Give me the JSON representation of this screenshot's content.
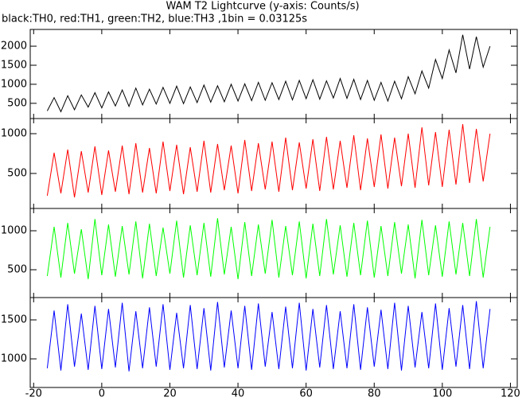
{
  "title": "WAM T2 Lightcurve (y-axis: Counts/s)",
  "subtitle": "black:TH0, red:TH1, green:TH2, blue:TH3 ,1bin = 0.03125s",
  "chart_data": [
    {
      "type": "line",
      "xlim": [
        -21,
        122
      ],
      "ylim": [
        100,
        2440
      ],
      "yticks": [
        500,
        1000,
        1500,
        2000
      ],
      "x": [
        -16,
        -14,
        -12,
        -10,
        -8,
        -6,
        -4,
        -2,
        0,
        2,
        4,
        6,
        8,
        10,
        12,
        14,
        16,
        18,
        20,
        22,
        24,
        26,
        28,
        30,
        32,
        34,
        36,
        38,
        40,
        42,
        44,
        46,
        48,
        50,
        52,
        54,
        56,
        58,
        60,
        62,
        64,
        66,
        68,
        70,
        72,
        74,
        76,
        78,
        80,
        82,
        84,
        86,
        88,
        90,
        92,
        94,
        96,
        98,
        100,
        102,
        104,
        106,
        108,
        110,
        112,
        114
      ],
      "series": [
        {
          "color": "#000000",
          "values": [
            300,
            650,
            280,
            700,
            330,
            720,
            400,
            780,
            380,
            800,
            430,
            850,
            420,
            900,
            460,
            870,
            480,
            920,
            500,
            950,
            490,
            930,
            520,
            980,
            530,
            960,
            540,
            1000,
            560,
            1010,
            570,
            1050,
            580,
            1040,
            600,
            1080,
            590,
            1100,
            620,
            1120,
            610,
            1090,
            640,
            1150,
            630,
            1130,
            600,
            1100,
            580,
            1050,
            560,
            1080,
            620,
            1200,
            750,
            1350,
            900,
            1650,
            1150,
            1900,
            1300,
            2300,
            1400,
            2250,
            1450,
            2000
          ]
        }
      ]
    },
    {
      "type": "line",
      "xlim": [
        -21,
        122
      ],
      "ylim": [
        60,
        1190
      ],
      "yticks": [
        500,
        1000
      ],
      "x": [
        -16,
        -14,
        -12,
        -10,
        -8,
        -6,
        -4,
        -2,
        0,
        2,
        4,
        6,
        8,
        10,
        12,
        14,
        16,
        18,
        20,
        22,
        24,
        26,
        28,
        30,
        32,
        34,
        36,
        38,
        40,
        42,
        44,
        46,
        48,
        50,
        52,
        54,
        56,
        58,
        60,
        62,
        64,
        66,
        68,
        70,
        72,
        74,
        76,
        78,
        80,
        82,
        84,
        86,
        88,
        90,
        92,
        94,
        96,
        98,
        100,
        102,
        104,
        106,
        108,
        110,
        112,
        114
      ],
      "series": [
        {
          "color": "#ff0000",
          "values": [
            220,
            760,
            250,
            800,
            200,
            780,
            260,
            840,
            230,
            790,
            270,
            850,
            240,
            880,
            260,
            820,
            250,
            900,
            280,
            860,
            240,
            830,
            270,
            910,
            260,
            870,
            290,
            850,
            250,
            920,
            280,
            880,
            300,
            900,
            270,
            950,
            290,
            890,
            310,
            930,
            280,
            960,
            300,
            910,
            320,
            980,
            290,
            940,
            330,
            990,
            310,
            950,
            340,
            1000,
            320,
            1080,
            350,
            1020,
            330,
            1050,
            360,
            1120,
            380,
            1060,
            400,
            1000
          ]
        }
      ]
    },
    {
      "type": "line",
      "xlim": [
        -21,
        122
      ],
      "ylim": [
        143,
        1286
      ],
      "yticks": [
        500,
        1000
      ],
      "x": [
        -16,
        -14,
        -12,
        -10,
        -8,
        -6,
        -4,
        -2,
        0,
        2,
        4,
        6,
        8,
        10,
        12,
        14,
        16,
        18,
        20,
        22,
        24,
        26,
        28,
        30,
        32,
        34,
        36,
        38,
        40,
        42,
        44,
        46,
        48,
        50,
        52,
        54,
        56,
        58,
        60,
        62,
        64,
        66,
        68,
        70,
        72,
        74,
        76,
        78,
        80,
        82,
        84,
        86,
        88,
        90,
        92,
        94,
        96,
        98,
        100,
        102,
        104,
        106,
        108,
        110,
        112,
        114
      ],
      "series": [
        {
          "color": "#00ff00",
          "values": [
            420,
            1050,
            400,
            1100,
            450,
            1020,
            380,
            1150,
            430,
            1080,
            410,
            1060,
            440,
            1120,
            390,
            1090,
            420,
            1040,
            450,
            1130,
            400,
            1070,
            430,
            1100,
            410,
            1160,
            440,
            1050,
            380,
            1110,
            420,
            1080,
            450,
            1140,
            400,
            1060,
            430,
            1120,
            390,
            1090,
            420,
            1150,
            440,
            1070,
            410,
            1100,
            430,
            1130,
            400,
            1060,
            420,
            1110,
            450,
            1080,
            390,
            1140,
            430,
            1070,
            410,
            1120,
            440,
            1100,
            420,
            1150,
            400,
            1050
          ]
        }
      ]
    },
    {
      "type": "line",
      "xlim": [
        -21,
        122
      ],
      "ylim": [
        633,
        1786
      ],
      "yticks": [
        1000,
        1500
      ],
      "x": [
        -16,
        -14,
        -12,
        -10,
        -8,
        -6,
        -4,
        -2,
        0,
        2,
        4,
        6,
        8,
        10,
        12,
        14,
        16,
        18,
        20,
        22,
        24,
        26,
        28,
        30,
        32,
        34,
        36,
        38,
        40,
        42,
        44,
        46,
        48,
        50,
        52,
        54,
        56,
        58,
        60,
        62,
        64,
        66,
        68,
        70,
        72,
        74,
        76,
        78,
        80,
        82,
        84,
        86,
        88,
        90,
        92,
        94,
        96,
        98,
        100,
        102,
        104,
        106,
        108,
        110,
        112,
        114
      ],
      "xticks": [
        -20,
        0,
        20,
        40,
        60,
        80,
        100,
        120
      ],
      "series": [
        {
          "color": "#0000ff",
          "values": [
            880,
            1620,
            850,
            1700,
            900,
            1580,
            860,
            1680,
            870,
            1640,
            890,
            1720,
            840,
            1610,
            880,
            1660,
            900,
            1700,
            860,
            1590,
            880,
            1690,
            870,
            1650,
            850,
            1730,
            890,
            1620,
            880,
            1680,
            860,
            1710,
            900,
            1600,
            870,
            1670,
            880,
            1720,
            850,
            1640,
            890,
            1690,
            870,
            1610,
            880,
            1700,
            860,
            1660,
            900,
            1630,
            870,
            1720,
            850,
            1680,
            890,
            1600,
            880,
            1710,
            860,
            1650,
            900,
            1690,
            870,
            1740,
            880,
            1640
          ]
        }
      ]
    }
  ]
}
